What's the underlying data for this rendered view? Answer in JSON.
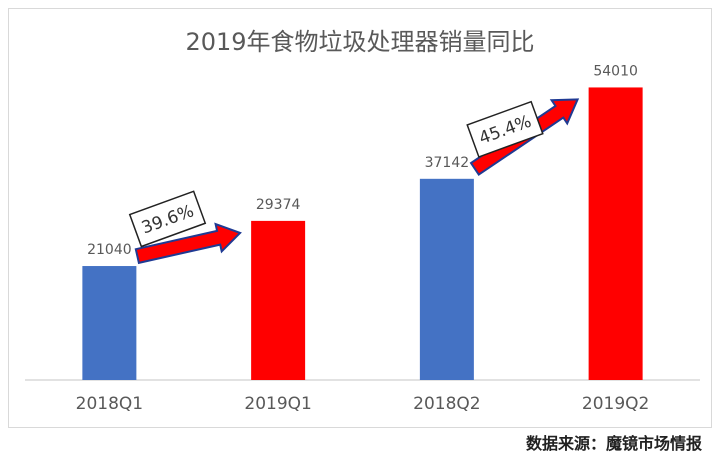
{
  "chart_data": {
    "type": "bar",
    "title": "2019年食物垃圾处理器销量同比",
    "categories": [
      "2018Q1",
      "2019Q1",
      "2018Q2",
      "2019Q2"
    ],
    "values": [
      21040,
      29374,
      37142,
      54010
    ],
    "bar_colors": [
      "#4472C4",
      "#FF0000",
      "#4472C4",
      "#FF0000"
    ],
    "ylim": [
      0,
      60000
    ],
    "grid": false,
    "annotations": [
      {
        "text": "39.6%",
        "from_category": "2018Q1",
        "to_category": "2019Q1"
      },
      {
        "text": "45.4%",
        "from_category": "2018Q2",
        "to_category": "2019Q2"
      }
    ]
  },
  "source_text": "数据来源：魔镜市场情报",
  "colors": {
    "title": "#595959",
    "label": "#595959",
    "axis": "#d9d9d9",
    "arrow": "#FF0000",
    "arrow_outline": "#1F3A93"
  }
}
